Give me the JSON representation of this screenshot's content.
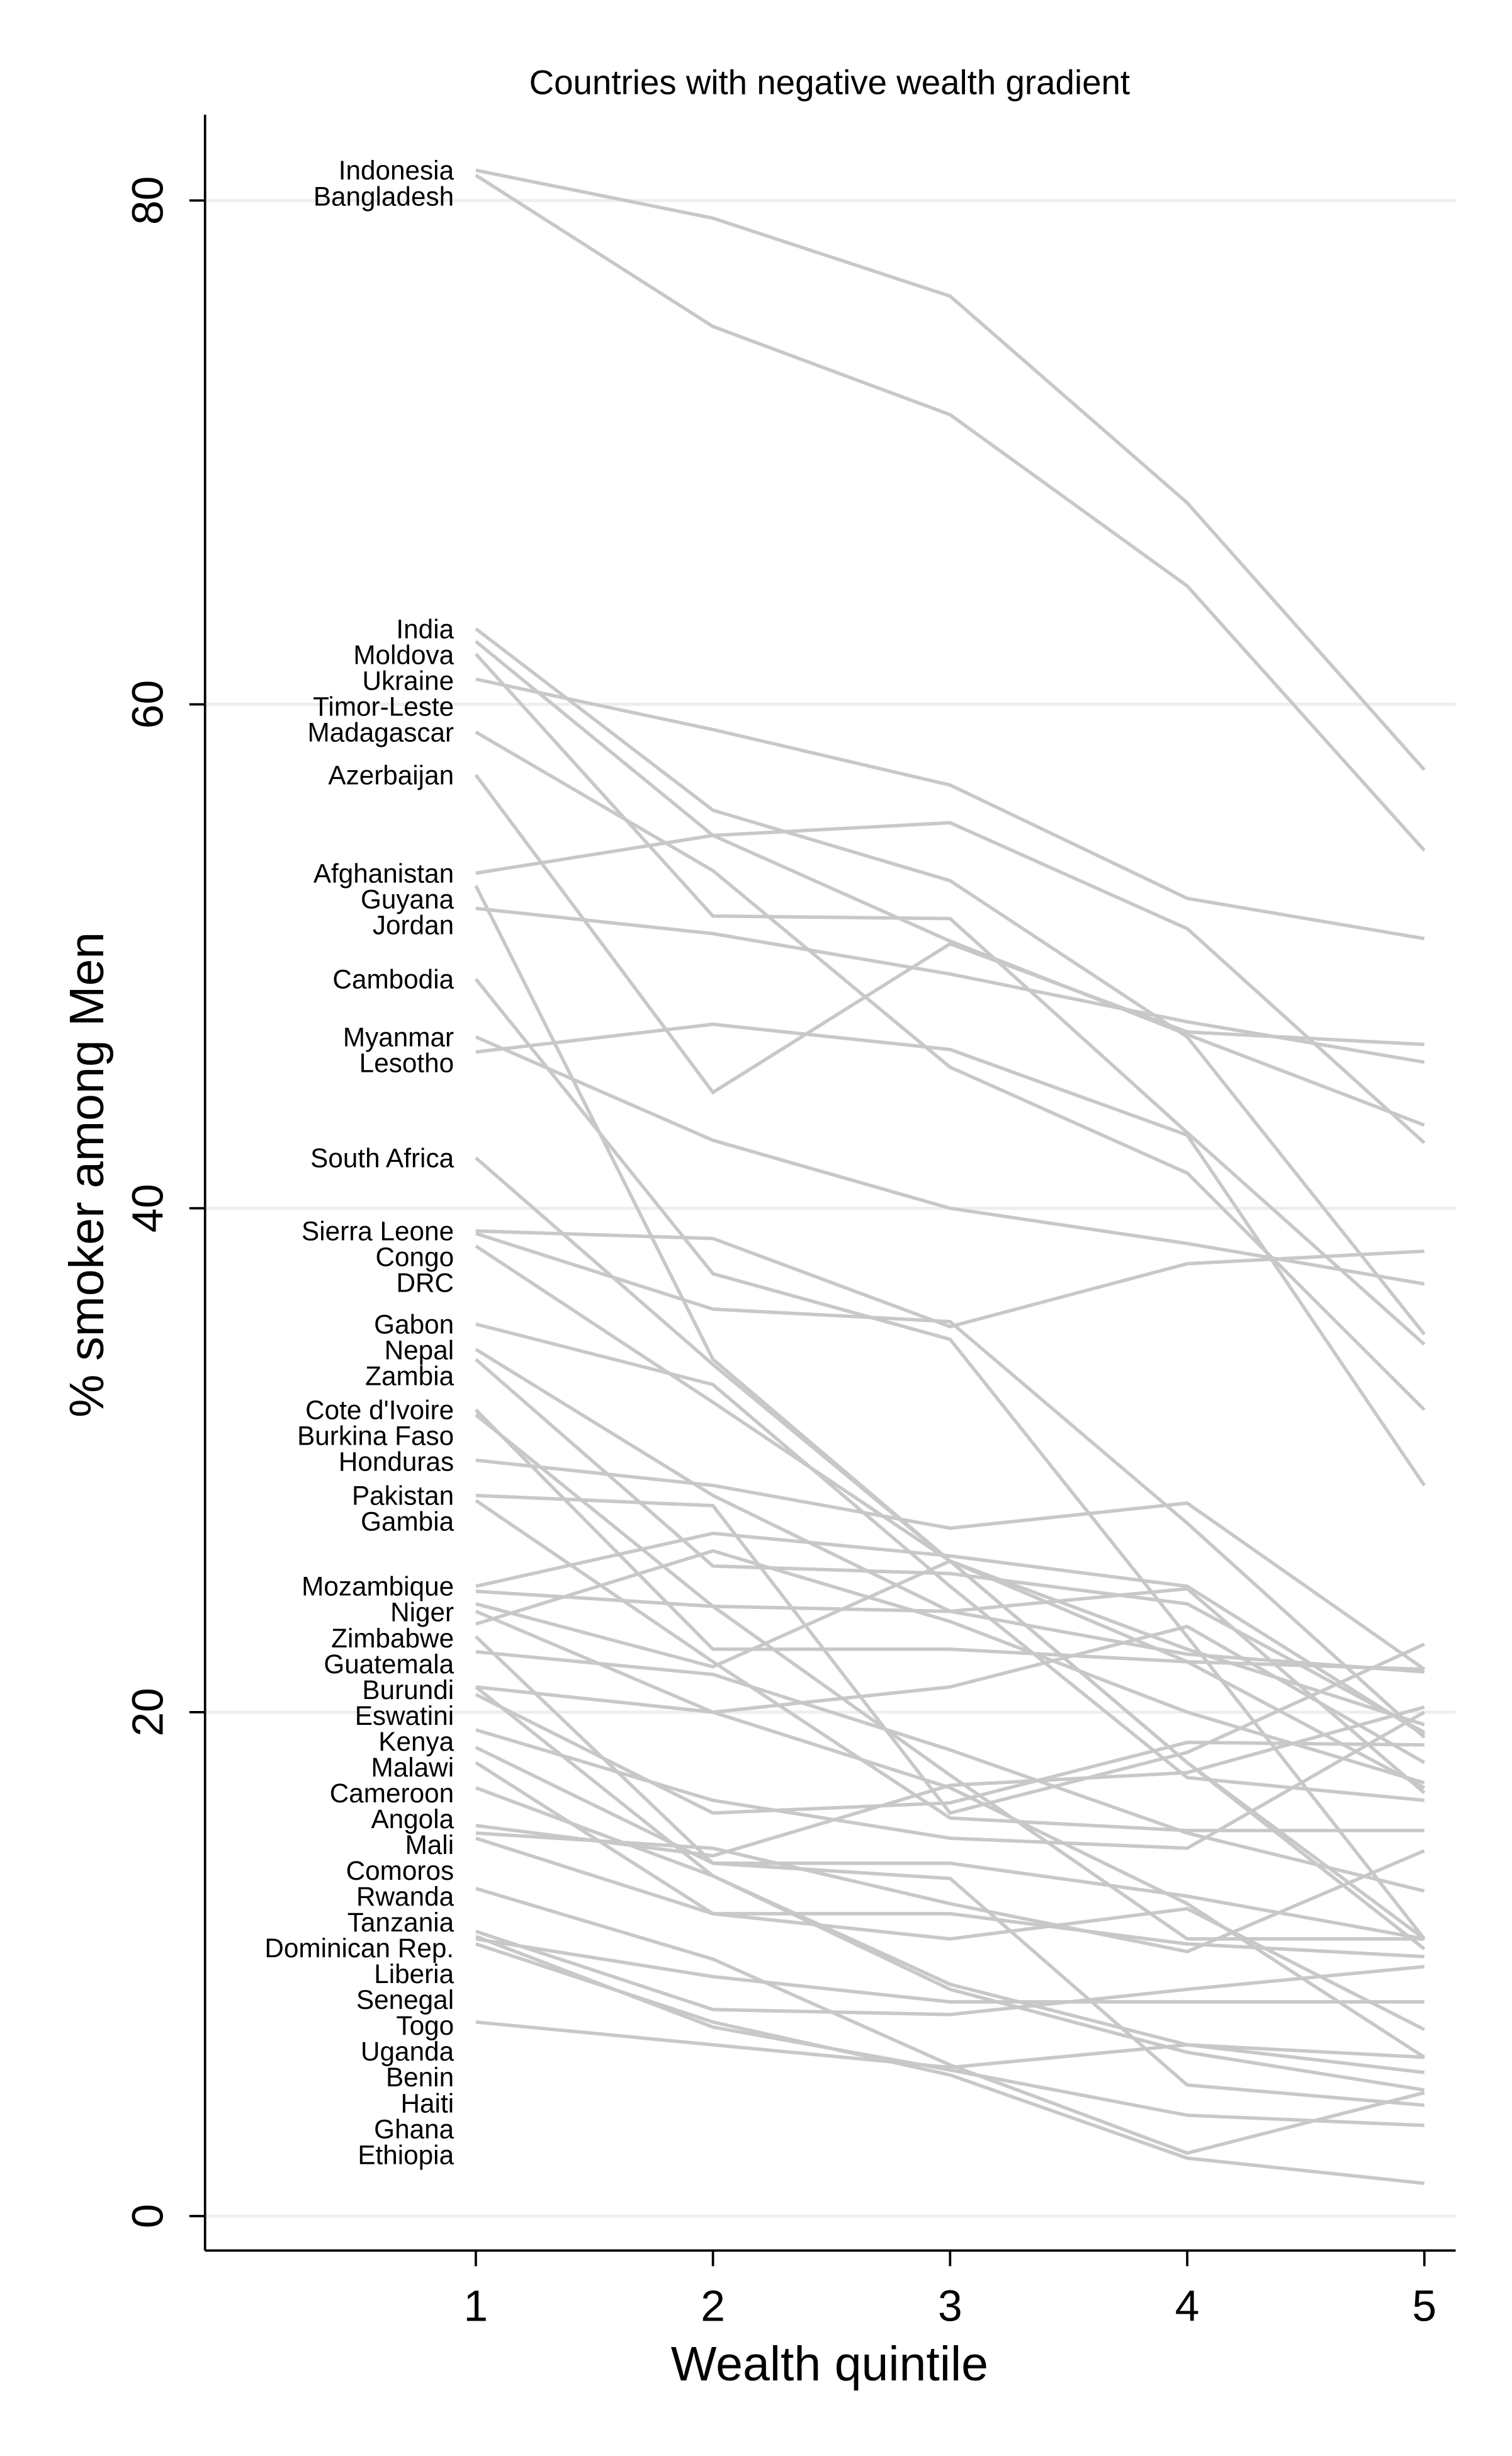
{
  "chart_data": {
    "type": "line",
    "title": "Countries with negative wealth gradient",
    "xlabel": "Wealth quintile",
    "ylabel": "% smoker among Men",
    "x": [
      1,
      2,
      3,
      4,
      5
    ],
    "x_ticks": [
      "1",
      "2",
      "3",
      "4",
      "5"
    ],
    "y_ticks": [
      "0",
      "20",
      "40",
      "60",
      "80"
    ],
    "ylim": [
      0,
      83
    ],
    "xlim": [
      0,
      5.15
    ],
    "grid": "horizontal",
    "legend": "none (series labelled at left end of each line)",
    "colors": {
      "lines": "#c8c8c8",
      "grid": "#e8f0f0",
      "axis": "#000000"
    },
    "series": [
      {
        "name": "Indonesia",
        "values": [
          81.2,
          79.3,
          76.2,
          68.0,
          57.4
        ]
      },
      {
        "name": "Bangladesh",
        "values": [
          81.0,
          75.0,
          71.5,
          64.7,
          54.2
        ]
      },
      {
        "name": "India",
        "values": [
          63.0,
          55.8,
          53.0,
          46.8,
          35.0
        ]
      },
      {
        "name": "Moldova",
        "values": [
          62.5,
          54.8,
          50.6,
          46.9,
          43.3
        ]
      },
      {
        "name": "Ukraine",
        "values": [
          62.0,
          51.6,
          51.5,
          43.0,
          34.6
        ]
      },
      {
        "name": "Timor-Leste",
        "values": [
          61.0,
          59.0,
          56.8,
          52.3,
          50.7
        ]
      },
      {
        "name": "Madagascar",
        "values": [
          58.9,
          53.4,
          45.6,
          41.4,
          32.0
        ]
      },
      {
        "name": "Azerbaijan",
        "values": [
          57.2,
          44.6,
          50.5,
          47.0,
          46.5
        ]
      },
      {
        "name": "Afghanistan",
        "values": [
          53.3,
          54.8,
          55.3,
          51.1,
          42.6
        ]
      },
      {
        "name": "Guyana",
        "values": [
          52.8,
          34.0,
          26.0,
          18.0,
          11.0
        ]
      },
      {
        "name": "Jordan",
        "values": [
          51.9,
          50.9,
          49.3,
          47.4,
          45.8
        ]
      },
      {
        "name": "Cambodia",
        "values": [
          49.1,
          37.4,
          34.8,
          23.0,
          11.0
        ]
      },
      {
        "name": "Myanmar",
        "values": [
          46.8,
          42.7,
          40.0,
          38.6,
          37.0
        ]
      },
      {
        "name": "Lesotho",
        "values": [
          46.2,
          47.3,
          46.3,
          42.9,
          29.0
        ]
      },
      {
        "name": "South Africa",
        "values": [
          42.0,
          33.8,
          26.0,
          22.0,
          17.0
        ]
      },
      {
        "name": "Sierra Leone",
        "values": [
          39.1,
          38.8,
          35.3,
          37.8,
          38.3
        ]
      },
      {
        "name": "Congo",
        "values": [
          39.0,
          36.0,
          35.5,
          27.5,
          19.0
        ]
      },
      {
        "name": "DRC",
        "values": [
          38.5,
          32.3,
          26.0,
          18.0,
          10.6
        ]
      },
      {
        "name": "Gabon",
        "values": [
          35.4,
          33.0,
          25.0,
          17.4,
          16.5
        ]
      },
      {
        "name": "Nepal",
        "values": [
          34.4,
          28.6,
          24.0,
          22.3,
          21.6
        ]
      },
      {
        "name": "Zambia",
        "values": [
          34.0,
          25.8,
          25.5,
          24.3,
          19.2
        ]
      },
      {
        "name": "Cote d'Ivoire",
        "values": [
          32.0,
          22.5,
          22.5,
          22.0,
          21.7
        ]
      },
      {
        "name": "Burkina Faso",
        "values": [
          31.8,
          24.2,
          17.5,
          11.0,
          11.0
        ]
      },
      {
        "name": "Honduras",
        "values": [
          30.0,
          29.0,
          27.3,
          28.3,
          21.7
        ]
      },
      {
        "name": "Pakistan",
        "values": [
          28.6,
          28.2,
          16.0,
          18.4,
          22.7
        ]
      },
      {
        "name": "Gambia",
        "values": [
          28.4,
          22.0,
          15.8,
          15.3,
          15.3
        ]
      },
      {
        "name": "Mozambique",
        "values": [
          25.0,
          27.1,
          26.2,
          25.0,
          19.1
        ]
      },
      {
        "name": "Niger",
        "values": [
          24.8,
          24.2,
          24.0,
          24.9,
          16.8
        ]
      },
      {
        "name": "Zimbabwe",
        "values": [
          24.3,
          21.8,
          26.0,
          22.5,
          19.5
        ]
      },
      {
        "name": "Guatemala",
        "values": [
          24.0,
          20.0,
          21.0,
          23.4,
          18.0
        ]
      },
      {
        "name": "Burundi",
        "values": [
          23.5,
          26.4,
          23.6,
          20.0,
          17.2
        ]
      },
      {
        "name": "Eswatini",
        "values": [
          23.0,
          14.0,
          13.4,
          5.2,
          4.4
        ]
      },
      {
        "name": "Kenya",
        "values": [
          22.4,
          21.5,
          18.5,
          15.2,
          12.9
        ]
      },
      {
        "name": "Malawi",
        "values": [
          21.0,
          13.5,
          9.0,
          6.5,
          5.0
        ]
      },
      {
        "name": "Angola",
        "values": [
          20.7,
          16.0,
          16.4,
          18.8,
          18.7
        ]
      },
      {
        "name": "Cameroon",
        "values": [
          21.0,
          20.0,
          17.0,
          12.4,
          6.3
        ]
      },
      {
        "name": "Mali",
        "values": [
          19.3,
          16.5,
          15.0,
          14.6,
          20.0
        ]
      },
      {
        "name": "Comoros",
        "values": [
          18.6,
          14.0,
          14.0,
          12.7,
          11.0
        ]
      },
      {
        "name": "Rwanda",
        "values": [
          18.0,
          12.0,
          11.0,
          12.2,
          7.4
        ]
      },
      {
        "name": "Tanzania",
        "values": [
          17.0,
          13.5,
          9.2,
          6.8,
          5.7
        ]
      },
      {
        "name": "Dominican Rep.",
        "values": [
          15.5,
          14.3,
          17.1,
          17.6,
          20.2
        ]
      },
      {
        "name": "Liberia",
        "values": [
          15.2,
          14.6,
          12.4,
          10.5,
          14.5
        ]
      },
      {
        "name": "Senegal",
        "values": [
          15.0,
          12.0,
          12.0,
          10.8,
          10.3
        ]
      },
      {
        "name": "Togo",
        "values": [
          13.0,
          10.2,
          6.0,
          2.5,
          4.9
        ]
      },
      {
        "name": "Uganda",
        "values": [
          11.3,
          8.2,
          8.0,
          9.0,
          9.9
        ]
      },
      {
        "name": "Benin",
        "values": [
          11.1,
          7.5,
          5.8,
          4.0,
          3.6
        ]
      },
      {
        "name": "Haiti",
        "values": [
          11.0,
          9.5,
          8.5,
          8.5,
          8.5
        ]
      },
      {
        "name": "Ghana",
        "values": [
          10.8,
          7.7,
          5.6,
          2.3,
          1.3
        ]
      },
      {
        "name": "Ethiopia",
        "values": [
          7.7,
          6.8,
          5.9,
          6.8,
          6.3
        ]
      }
    ]
  }
}
